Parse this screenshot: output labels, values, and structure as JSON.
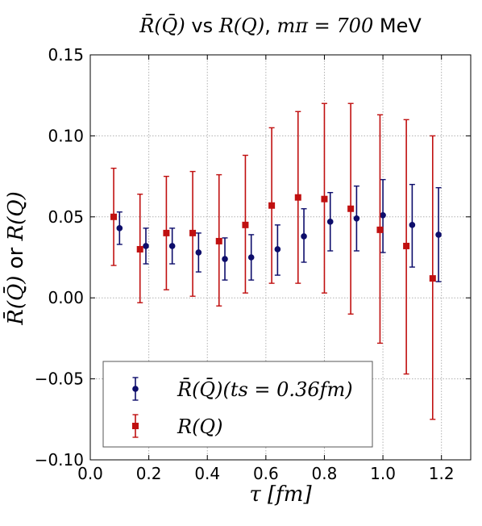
{
  "title": {
    "lhs": "R̄(Q̄)",
    "vs": "vs",
    "rhs": "R(Q)",
    "sep": ",",
    "mass": "mπ = 700",
    "unit": "MeV"
  },
  "xlabel": "τ [fm]",
  "ylabel": {
    "a": "R̄(Q̄)",
    "or": "or",
    "b": "R(Q)"
  },
  "legend": {
    "blue": "R̄(Q̄)(ts = 0.36fm)",
    "red": "R(Q)"
  },
  "colors": {
    "blue": "#0d0d6b",
    "red": "#c01010"
  },
  "chart_data": {
    "type": "scatter",
    "xlim": [
      0.0,
      1.3
    ],
    "ylim": [
      -0.1,
      0.15
    ],
    "xticks": [
      "0.0",
      "0.2",
      "0.4",
      "0.6",
      "0.8",
      "1.0",
      "1.2"
    ],
    "yticks": [
      "−0.10",
      "−0.05",
      "0.00",
      "0.05",
      "0.10",
      "0.15"
    ],
    "grid": true,
    "legend_position": "lower-left",
    "series": [
      {
        "name": "R̄(Q̄)(ts = 0.36fm)",
        "marker": "circle",
        "color": "#0d0d6b",
        "points": [
          {
            "x": 0.1,
            "y": 0.043,
            "lo": 0.033,
            "hi": 0.053
          },
          {
            "x": 0.19,
            "y": 0.032,
            "lo": 0.021,
            "hi": 0.043
          },
          {
            "x": 0.28,
            "y": 0.032,
            "lo": 0.021,
            "hi": 0.043
          },
          {
            "x": 0.37,
            "y": 0.028,
            "lo": 0.016,
            "hi": 0.04
          },
          {
            "x": 0.46,
            "y": 0.024,
            "lo": 0.011,
            "hi": 0.037
          },
          {
            "x": 0.55,
            "y": 0.025,
            "lo": 0.011,
            "hi": 0.039
          },
          {
            "x": 0.64,
            "y": 0.03,
            "lo": 0.014,
            "hi": 0.045
          },
          {
            "x": 0.73,
            "y": 0.038,
            "lo": 0.022,
            "hi": 0.055
          },
          {
            "x": 0.82,
            "y": 0.047,
            "lo": 0.029,
            "hi": 0.065
          },
          {
            "x": 0.91,
            "y": 0.049,
            "lo": 0.029,
            "hi": 0.069
          },
          {
            "x": 1.0,
            "y": 0.051,
            "lo": 0.028,
            "hi": 0.073
          },
          {
            "x": 1.1,
            "y": 0.045,
            "lo": 0.019,
            "hi": 0.07
          },
          {
            "x": 1.19,
            "y": 0.039,
            "lo": 0.01,
            "hi": 0.068
          }
        ]
      },
      {
        "name": "R(Q)",
        "marker": "square",
        "color": "#c01010",
        "points": [
          {
            "x": 0.08,
            "y": 0.05,
            "lo": 0.02,
            "hi": 0.08
          },
          {
            "x": 0.17,
            "y": 0.03,
            "lo": -0.003,
            "hi": 0.064
          },
          {
            "x": 0.26,
            "y": 0.04,
            "lo": 0.005,
            "hi": 0.075
          },
          {
            "x": 0.35,
            "y": 0.04,
            "lo": 0.001,
            "hi": 0.078
          },
          {
            "x": 0.44,
            "y": 0.035,
            "lo": -0.005,
            "hi": 0.076
          },
          {
            "x": 0.53,
            "y": 0.045,
            "lo": 0.003,
            "hi": 0.088
          },
          {
            "x": 0.62,
            "y": 0.057,
            "lo": 0.009,
            "hi": 0.105
          },
          {
            "x": 0.71,
            "y": 0.062,
            "lo": 0.009,
            "hi": 0.115
          },
          {
            "x": 0.8,
            "y": 0.061,
            "lo": 0.003,
            "hi": 0.12
          },
          {
            "x": 0.89,
            "y": 0.055,
            "lo": -0.01,
            "hi": 0.12
          },
          {
            "x": 0.99,
            "y": 0.042,
            "lo": -0.028,
            "hi": 0.113
          },
          {
            "x": 1.08,
            "y": 0.032,
            "lo": -0.047,
            "hi": 0.11
          },
          {
            "x": 1.17,
            "y": 0.012,
            "lo": -0.075,
            "hi": 0.1
          }
        ]
      }
    ]
  }
}
